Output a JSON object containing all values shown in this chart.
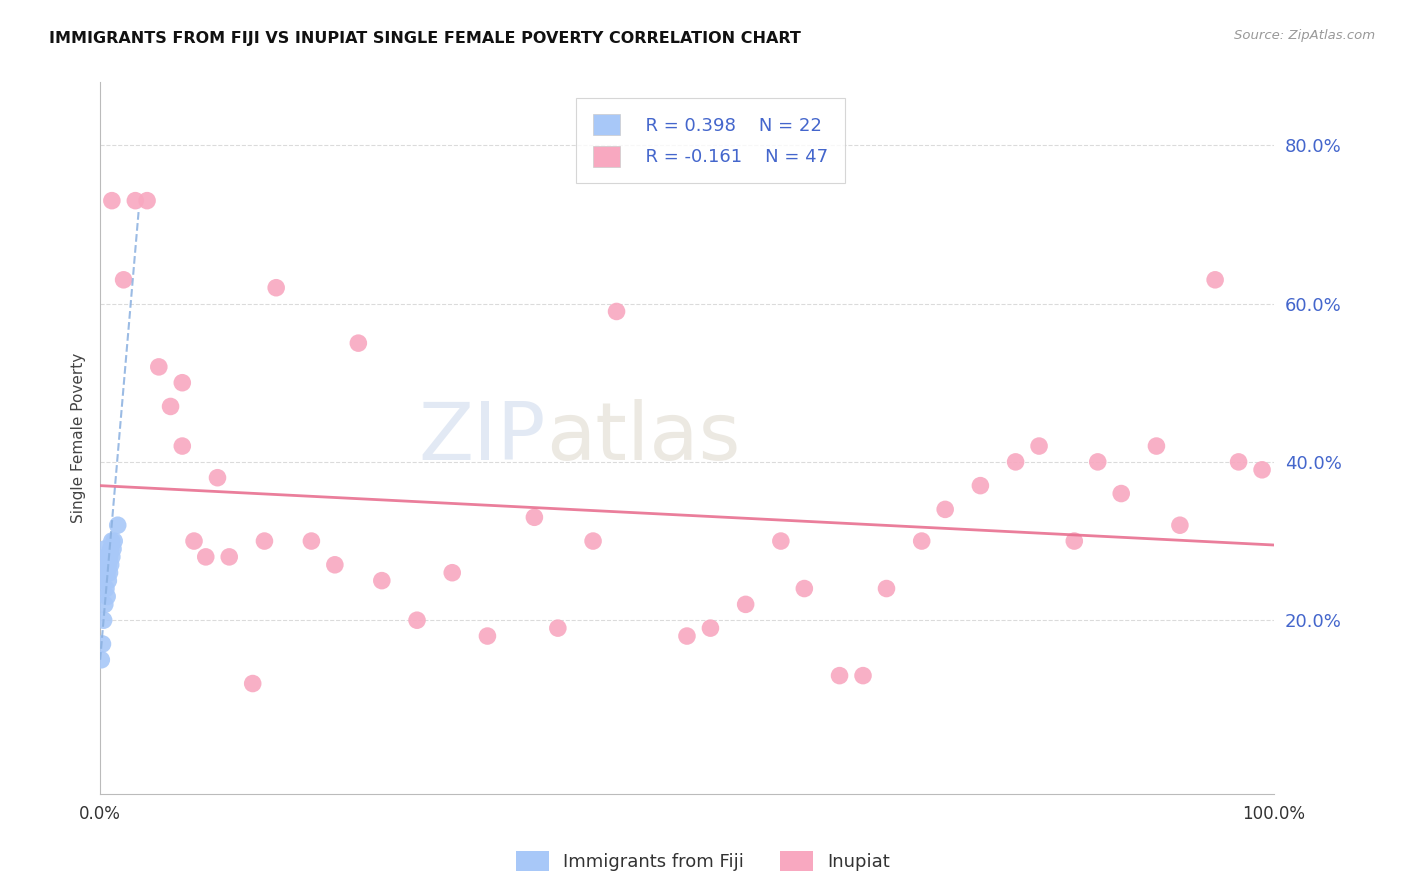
{
  "title": "IMMIGRANTS FROM FIJI VS INUPIAT SINGLE FEMALE POVERTY CORRELATION CHART",
  "source": "Source: ZipAtlas.com",
  "ylabel": "Single Female Poverty",
  "yticks": [
    0.0,
    0.2,
    0.4,
    0.6,
    0.8
  ],
  "ytick_labels": [
    "",
    "20.0%",
    "40.0%",
    "60.0%",
    "80.0%"
  ],
  "xlim": [
    0.0,
    1.0
  ],
  "ylim": [
    -0.02,
    0.88
  ],
  "legend_fiji_R": "R = 0.398",
  "legend_fiji_N": "N = 22",
  "legend_inupiat_R": "R = -0.161",
  "legend_inupiat_N": "N = 47",
  "fiji_color": "#a8c8f8",
  "inupiat_color": "#f8a8c0",
  "fiji_line_color": "#8ab0e0",
  "inupiat_line_color": "#e87090",
  "fiji_scatter_x": [
    0.001,
    0.002,
    0.002,
    0.003,
    0.003,
    0.004,
    0.004,
    0.005,
    0.005,
    0.006,
    0.006,
    0.007,
    0.007,
    0.008,
    0.008,
    0.009,
    0.009,
    0.01,
    0.01,
    0.011,
    0.012,
    0.015
  ],
  "fiji_scatter_y": [
    0.15,
    0.17,
    0.25,
    0.2,
    0.27,
    0.22,
    0.29,
    0.24,
    0.28,
    0.23,
    0.26,
    0.25,
    0.27,
    0.26,
    0.28,
    0.27,
    0.29,
    0.28,
    0.3,
    0.29,
    0.3,
    0.32
  ],
  "inupiat_scatter_x": [
    0.01,
    0.02,
    0.03,
    0.04,
    0.05,
    0.06,
    0.07,
    0.07,
    0.08,
    0.09,
    0.1,
    0.11,
    0.13,
    0.14,
    0.15,
    0.18,
    0.2,
    0.22,
    0.24,
    0.27,
    0.3,
    0.33,
    0.37,
    0.39,
    0.42,
    0.44,
    0.5,
    0.52,
    0.55,
    0.58,
    0.6,
    0.63,
    0.65,
    0.67,
    0.7,
    0.72,
    0.75,
    0.78,
    0.8,
    0.83,
    0.85,
    0.87,
    0.9,
    0.92,
    0.95,
    0.97,
    0.99
  ],
  "inupiat_scatter_y": [
    0.73,
    0.63,
    0.73,
    0.73,
    0.52,
    0.47,
    0.42,
    0.5,
    0.3,
    0.28,
    0.38,
    0.28,
    0.12,
    0.3,
    0.62,
    0.3,
    0.27,
    0.55,
    0.25,
    0.2,
    0.26,
    0.18,
    0.33,
    0.19,
    0.3,
    0.59,
    0.18,
    0.19,
    0.22,
    0.3,
    0.24,
    0.13,
    0.13,
    0.24,
    0.3,
    0.34,
    0.37,
    0.4,
    0.42,
    0.3,
    0.4,
    0.36,
    0.42,
    0.32,
    0.63,
    0.4,
    0.39
  ],
  "fiji_trend_x": [
    0.0,
    0.033
  ],
  "fiji_trend_y": [
    0.15,
    0.72
  ],
  "inupiat_trend_x": [
    0.0,
    1.0
  ],
  "inupiat_trend_y": [
    0.37,
    0.295
  ],
  "background_color": "#ffffff",
  "grid_color": "#d8d8d8"
}
